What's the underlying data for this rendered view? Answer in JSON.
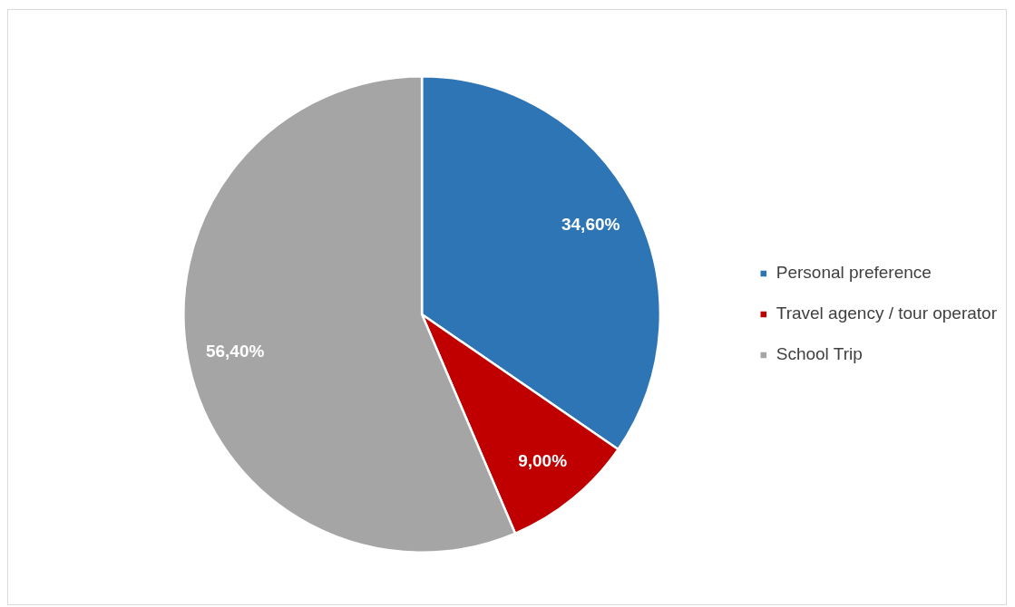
{
  "chart_data": {
    "type": "pie",
    "categories": [
      "Personal preference",
      "Travel agency / tour operator",
      "School Trip"
    ],
    "values": [
      34.6,
      9.0,
      56.4
    ],
    "colors": [
      "#2e75b6",
      "#c00000",
      "#a5a5a5"
    ],
    "value_labels": [
      "34,60%",
      "9,00%",
      "56,40%"
    ],
    "legend": "right"
  }
}
